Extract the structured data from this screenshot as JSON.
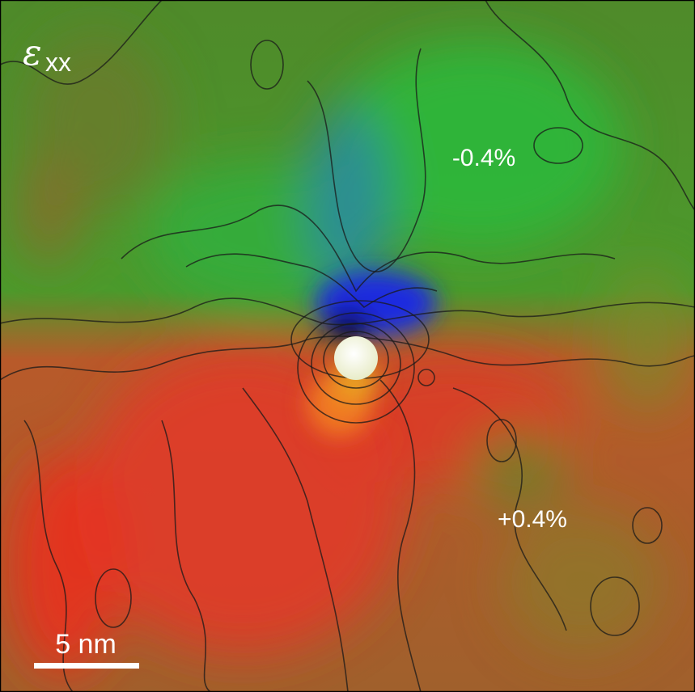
{
  "panel": {
    "symbol": "ε",
    "subscript": "xx"
  },
  "annotations": [
    "-0.4%",
    "+0.4%"
  ],
  "scale_bar": {
    "label": "5 nm"
  }
}
